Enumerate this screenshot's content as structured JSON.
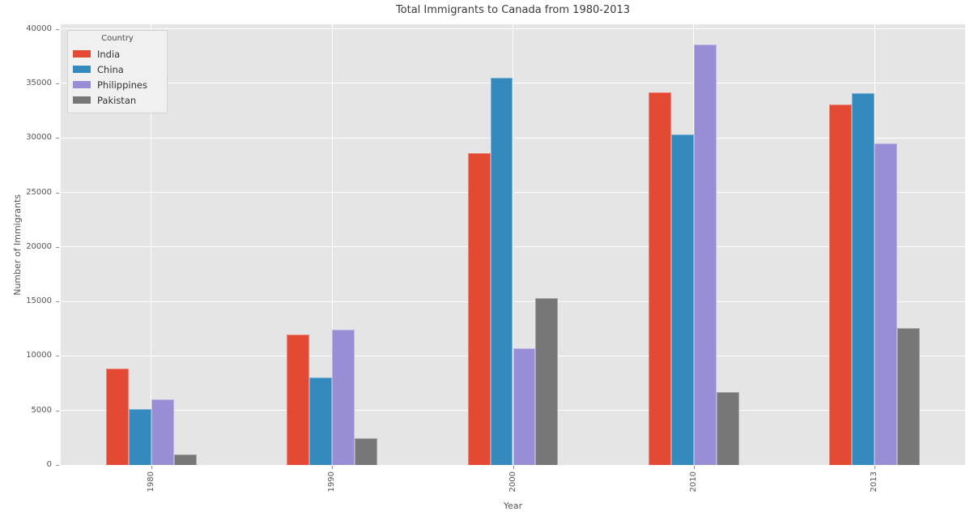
{
  "title": "Total Immigrants to Canada from 1980-2013",
  "chart_data": {
    "type": "bar",
    "title": "Total Immigrants to Canada from 1980-2013",
    "xlabel": "Year",
    "ylabel": "Number of Immigrants",
    "categories": [
      "1980",
      "1990",
      "2000",
      "2010",
      "2013"
    ],
    "series": [
      {
        "name": "India",
        "color": "#E24A33",
        "values": [
          8880,
          11930,
          28590,
          34200,
          33090
        ]
      },
      {
        "name": "China",
        "color": "#348ABD",
        "values": [
          5120,
          8050,
          35490,
          30300,
          34100
        ]
      },
      {
        "name": "Philippines",
        "color": "#988ED5",
        "values": [
          6050,
          12430,
          10700,
          38600,
          29500
        ]
      },
      {
        "name": "Pakistan",
        "color": "#777777",
        "values": [
          960,
          2420,
          15320,
          6700,
          12580
        ]
      }
    ],
    "ylim": [
      0,
      40420
    ],
    "yticks": [
      0,
      5000,
      10000,
      15000,
      20000,
      25000,
      30000,
      35000,
      40000
    ],
    "legend_title": "Country",
    "legend_position": "upper left",
    "grid": true,
    "style": {
      "axes_background": "#E5E5E5",
      "grid_color": "#FFFFFF",
      "figure_background": "#FFFFFF",
      "tick_text_color": "#555555",
      "title_color": "#3A3A3A"
    }
  }
}
